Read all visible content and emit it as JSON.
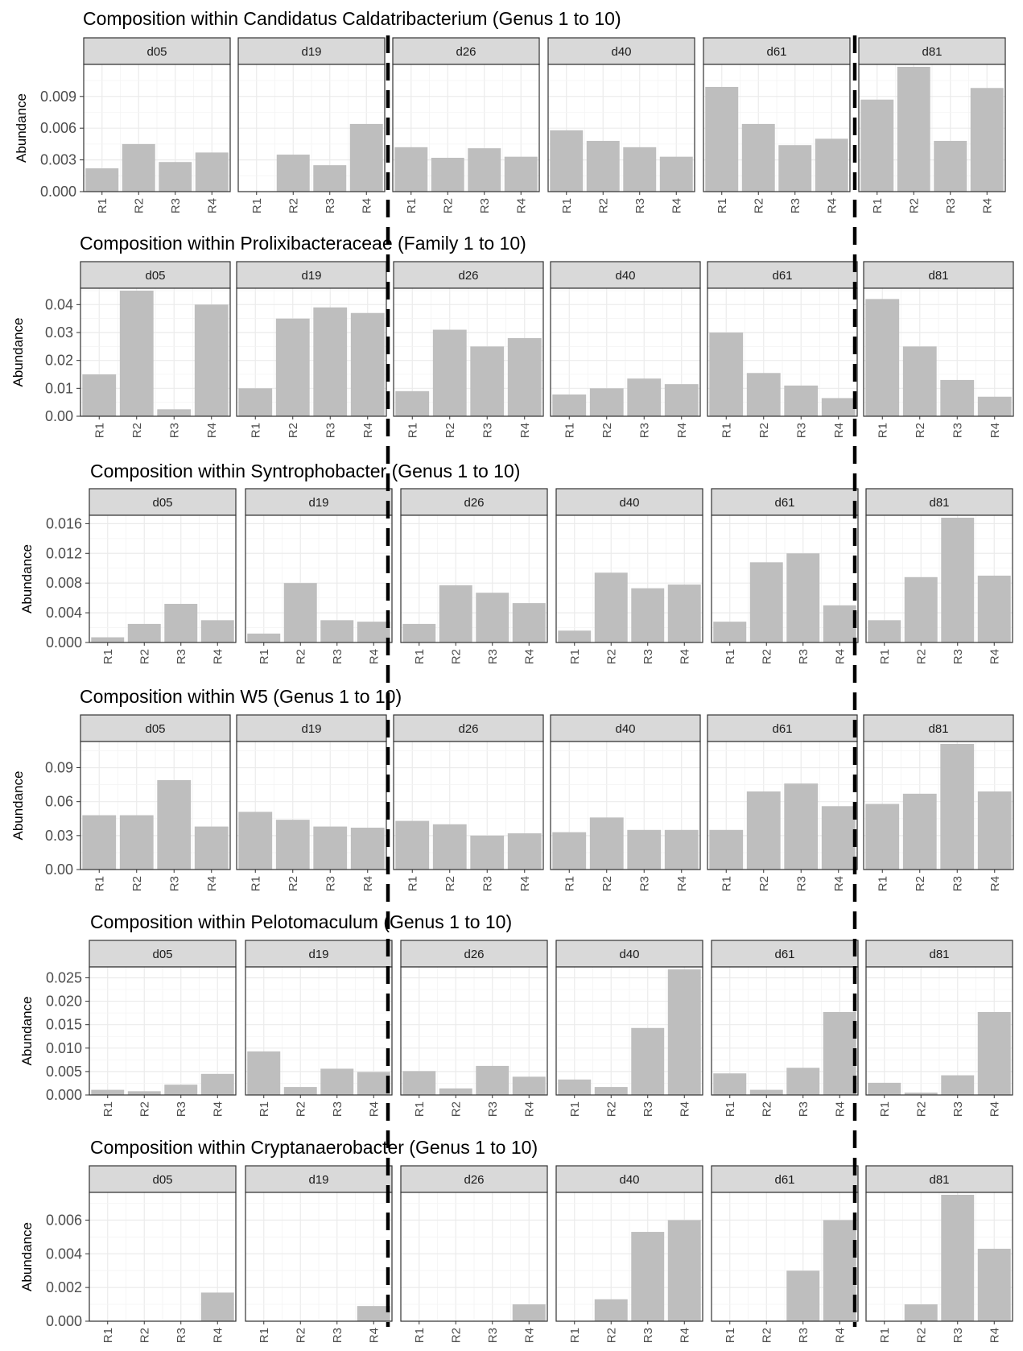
{
  "colors": {
    "bar": "#bebebe",
    "strip_fill": "#d9d9d9",
    "panel_border": "#333333",
    "grid": "#ebebeb",
    "separator": "#000000"
  },
  "chart_data": [
    {
      "type": "bar",
      "title": "Composition within Candidatus Caldatribacterium (Genus 1 to 10)",
      "ylabel": "Abundance",
      "facets": [
        "d05",
        "d19",
        "d26",
        "d40",
        "d61",
        "d81"
      ],
      "categories": [
        "R1",
        "R2",
        "R3",
        "R4"
      ],
      "yticks": [
        0.0,
        0.003,
        0.006,
        0.009
      ],
      "ytick_labels": [
        "0.000",
        "0.003",
        "0.006",
        "0.009"
      ],
      "ylim": [
        0,
        0.0118
      ],
      "values": [
        [
          0.0022,
          0.0045,
          0.0028,
          0.0037
        ],
        [
          0.0,
          0.0035,
          0.0025,
          0.0064
        ],
        [
          0.0042,
          0.0032,
          0.0041,
          0.0033
        ],
        [
          0.0058,
          0.0048,
          0.0042,
          0.0033
        ],
        [
          0.0099,
          0.0064,
          0.0044,
          0.005
        ],
        [
          0.0087,
          0.0118,
          0.0048,
          0.0098
        ]
      ]
    },
    {
      "type": "bar",
      "title": "Composition within Prolixibacteraceae (Family 1 to 10)",
      "ylabel": "Abundance",
      "facets": [
        "d05",
        "d19",
        "d26",
        "d40",
        "d61",
        "d81"
      ],
      "categories": [
        "R1",
        "R2",
        "R3",
        "R4"
      ],
      "yticks": [
        0.0,
        0.01,
        0.02,
        0.03,
        0.04
      ],
      "ytick_labels": [
        "0.00",
        "0.01",
        "0.02",
        "0.03",
        "0.04"
      ],
      "ylim": [
        0,
        0.045
      ],
      "values": [
        [
          0.015,
          0.045,
          0.0025,
          0.04
        ],
        [
          0.01,
          0.035,
          0.039,
          0.037
        ],
        [
          0.009,
          0.031,
          0.025,
          0.028
        ],
        [
          0.0078,
          0.01,
          0.0135,
          0.0115
        ],
        [
          0.03,
          0.0155,
          0.011,
          0.0065
        ],
        [
          0.042,
          0.025,
          0.013,
          0.007
        ]
      ]
    },
    {
      "type": "bar",
      "title": "Composition within Syntrophobacter (Genus 1 to 10)",
      "ylabel": "Abundance",
      "facets": [
        "d05",
        "d19",
        "d26",
        "d40",
        "d61",
        "d81"
      ],
      "categories": [
        "R1",
        "R2",
        "R3",
        "R4"
      ],
      "yticks": [
        0.0,
        0.004,
        0.008,
        0.012,
        0.016
      ],
      "ytick_labels": [
        "0.000",
        "0.004",
        "0.008",
        "0.012",
        "0.016"
      ],
      "ylim": [
        0,
        0.0168
      ],
      "values": [
        [
          0.0007,
          0.0025,
          0.0052,
          0.003
        ],
        [
          0.0012,
          0.008,
          0.003,
          0.0028
        ],
        [
          0.0025,
          0.0077,
          0.0067,
          0.0053
        ],
        [
          0.0016,
          0.0094,
          0.0073,
          0.0078
        ],
        [
          0.0028,
          0.0108,
          0.012,
          0.005
        ],
        [
          0.003,
          0.0088,
          0.0168,
          0.009
        ]
      ]
    },
    {
      "type": "bar",
      "title": "Composition within W5 (Genus 1 to 10)",
      "ylabel": "Abundance",
      "facets": [
        "d05",
        "d19",
        "d26",
        "d40",
        "d61",
        "d81"
      ],
      "categories": [
        "R1",
        "R2",
        "R3",
        "R4"
      ],
      "yticks": [
        0.0,
        0.03,
        0.06,
        0.09
      ],
      "ytick_labels": [
        "0.00",
        "0.03",
        "0.06",
        "0.09"
      ],
      "ylim": [
        0,
        0.111
      ],
      "values": [
        [
          0.048,
          0.048,
          0.079,
          0.038
        ],
        [
          0.051,
          0.044,
          0.038,
          0.037
        ],
        [
          0.043,
          0.04,
          0.03,
          0.032
        ],
        [
          0.033,
          0.046,
          0.035,
          0.035
        ],
        [
          0.035,
          0.069,
          0.076,
          0.056
        ],
        [
          0.058,
          0.067,
          0.111,
          0.069
        ]
      ]
    },
    {
      "type": "bar",
      "title": "Composition within Pelotomaculum (Genus 1 to 10)",
      "ylabel": "Abundance",
      "facets": [
        "d05",
        "d19",
        "d26",
        "d40",
        "d61",
        "d81"
      ],
      "categories": [
        "R1",
        "R2",
        "R3",
        "R4"
      ],
      "yticks": [
        0.0,
        0.005,
        0.01,
        0.015,
        0.02,
        0.025
      ],
      "ytick_labels": [
        "0.000",
        "0.005",
        "0.010",
        "0.015",
        "0.020",
        "0.025"
      ],
      "ylim": [
        0,
        0.0268
      ],
      "values": [
        [
          0.0011,
          0.0008,
          0.0022,
          0.0045
        ],
        [
          0.0093,
          0.0017,
          0.0056,
          0.0049
        ],
        [
          0.0051,
          0.0014,
          0.0062,
          0.0039
        ],
        [
          0.0033,
          0.0017,
          0.0143,
          0.0268
        ],
        [
          0.0046,
          0.0011,
          0.0058,
          0.0177
        ],
        [
          0.0026,
          0.0005,
          0.0042,
          0.0177
        ]
      ]
    },
    {
      "type": "bar",
      "title": "Composition within Cryptanaerobacter (Genus 1 to 10)",
      "ylabel": "Abundance",
      "facets": [
        "d05",
        "d19",
        "d26",
        "d40",
        "d61",
        "d81"
      ],
      "categories": [
        "R1",
        "R2",
        "R3",
        "R4"
      ],
      "yticks": [
        0.0,
        0.002,
        0.004,
        0.006
      ],
      "ytick_labels": [
        "0.000",
        "0.002",
        "0.004",
        "0.006"
      ],
      "ylim": [
        0,
        0.0075
      ],
      "values": [
        [
          0.0,
          0.0,
          0.0,
          0.0017
        ],
        [
          0.0,
          0.0,
          0.0,
          0.0009
        ],
        [
          0.0,
          0.0,
          0.0,
          0.001
        ],
        [
          0.0,
          0.0013,
          0.0053,
          0.006
        ],
        [
          0.0,
          0.0,
          0.003,
          0.006
        ],
        [
          0.0,
          0.001,
          0.0075,
          0.0043
        ]
      ]
    }
  ]
}
